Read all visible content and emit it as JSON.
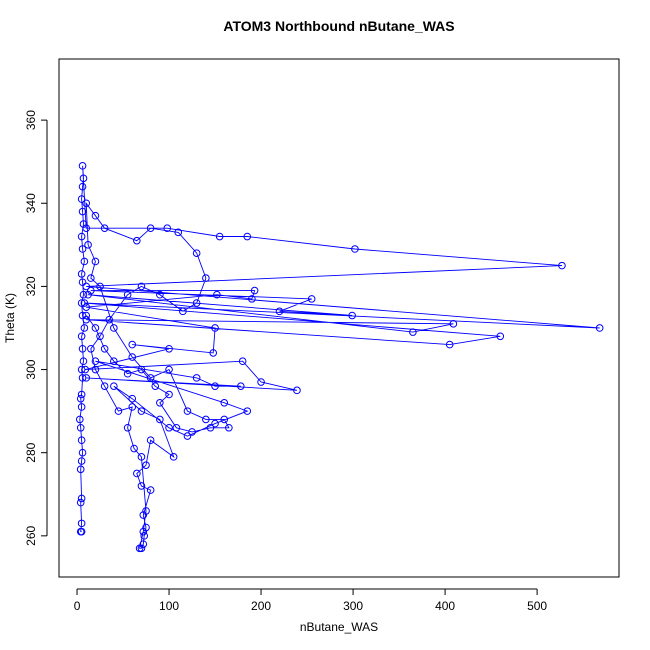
{
  "chart_data": {
    "type": "line",
    "title": "ATOM3 Northbound nButane_WAS",
    "x_label": "nButane_WAS",
    "y_label": "Theta (K)",
    "xlim": [
      -19.6,
      589
    ],
    "ylim": [
      250.1,
      374.7
    ],
    "xticks": [
      0,
      100,
      200,
      300,
      400,
      500
    ],
    "yticks": [
      260,
      280,
      300,
      320,
      340,
      360
    ],
    "marker": "open-circle",
    "x": [
      5,
      4,
      5,
      4,
      5,
      4,
      5,
      6,
      5,
      4,
      3,
      5,
      4,
      5,
      6,
      5,
      7,
      6,
      5,
      8,
      6,
      5,
      7,
      6,
      5,
      8,
      6,
      5,
      7,
      6,
      5,
      6,
      7,
      6,
      10,
      98,
      155,
      185,
      302,
      527,
      10,
      568,
      8,
      460,
      405,
      10,
      409,
      365,
      12,
      299,
      220,
      255,
      15,
      193,
      190,
      152,
      10,
      150,
      148,
      60,
      100,
      9,
      180,
      200,
      239,
      10,
      178,
      150,
      130,
      20,
      160,
      185,
      150,
      120,
      100,
      60,
      40,
      70,
      90,
      105,
      80,
      75,
      65,
      70,
      80,
      72,
      75,
      73,
      72,
      70,
      68,
      72,
      75,
      70,
      62,
      55,
      60,
      45,
      30,
      20,
      15,
      25,
      35,
      55,
      70,
      90,
      115,
      130,
      140,
      130,
      110,
      80,
      65,
      30,
      20,
      10,
      12,
      20,
      15,
      25,
      40,
      60,
      80,
      100,
      120,
      140,
      160,
      165,
      145,
      125,
      108,
      90,
      100,
      85,
      70,
      55,
      40,
      30,
      20,
      10
    ],
    "series": [
      {
        "name": "nButane_WAS",
        "color": "#0000ff",
        "values": [
          261,
          261,
          263,
          268,
          269,
          276,
          278,
          280,
          283,
          286,
          288,
          291,
          293,
          294,
          298,
          300,
          302,
          305,
          308,
          310,
          313,
          316,
          318,
          321,
          323,
          326,
          329,
          332,
          335,
          338,
          341,
          344,
          346,
          349,
          334,
          334,
          332,
          332,
          329,
          325,
          320,
          310,
          316,
          308,
          306,
          312,
          311,
          309,
          318,
          313,
          314,
          317,
          319,
          319,
          317,
          318,
          315,
          310,
          304,
          306,
          305,
          300,
          302,
          297,
          295,
          298,
          296,
          296,
          298,
          302,
          292,
          290,
          287,
          284,
          286,
          293,
          296,
          290,
          288,
          279,
          283,
          277,
          275,
          272,
          271,
          265,
          262,
          260,
          258,
          257,
          257,
          261,
          266,
          279,
          281,
          286,
          291,
          290,
          296,
          300,
          305,
          308,
          312,
          318,
          320,
          318,
          314,
          316,
          322,
          328,
          333,
          334,
          331,
          334,
          337,
          340,
          330,
          326,
          322,
          320,
          310,
          303,
          298,
          300,
          290,
          288,
          288,
          286,
          286,
          285,
          286,
          292,
          294,
          296,
          300,
          299,
          302,
          305,
          310,
          313
        ]
      }
    ]
  }
}
